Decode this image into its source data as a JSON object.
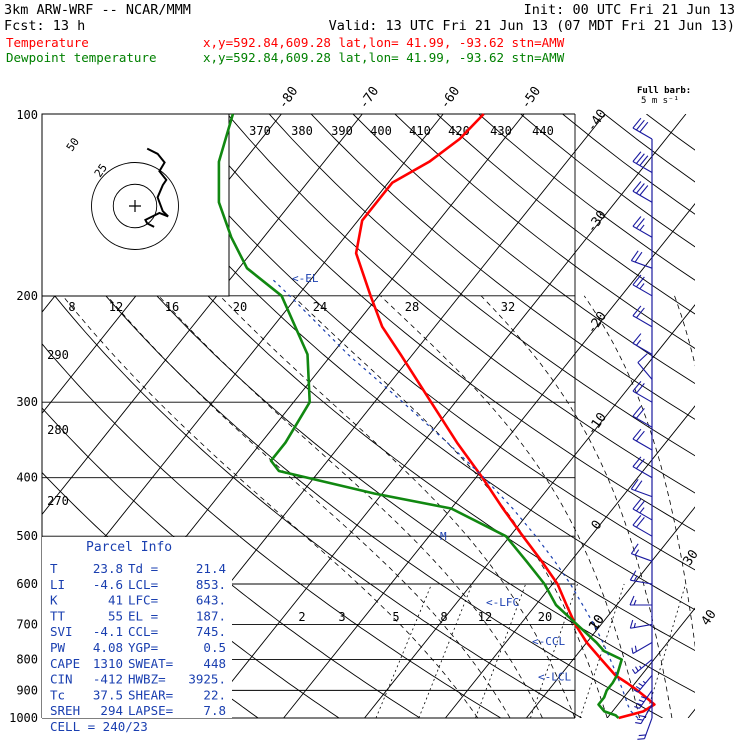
{
  "header": {
    "model": "3km ARW-WRF -- NCAR/MMM",
    "init": "Init: 00 UTC Fri 21 Jun 13",
    "fcst": "Fcst:   13 h",
    "valid": "Valid: 13 UTC Fri 21 Jun 13 (07 MDT Fri 21 Jun 13)",
    "temp_line": {
      "label": "Temperature",
      "coords": "x,y=592.84,609.28  lat,lon= 41.99, -93.62  stn=AMW",
      "color": "#ff0000"
    },
    "dew_line": {
      "label": "Dewpoint temperature",
      "coords": "x,y=592.84,609.28  lat,lon= 41.99, -93.62  stn=AMW",
      "color": "#008000"
    }
  },
  "barb_legend": {
    "title": "Full barb:",
    "value": "5 m s⁻¹"
  },
  "colors": {
    "temperature": "#ff0000",
    "dewpoint": "#118811",
    "parcel": "#1a3fb0",
    "barbs": "#1a1aa0",
    "grid": "#000000"
  },
  "chart_data": {
    "type": "line",
    "subtype": "skew-T log-P sounding",
    "y_axis": {
      "label": "pressure (hPa)",
      "scale": "log",
      "range": [
        1000,
        100
      ],
      "ticks": [
        "100",
        "200",
        "300",
        "400",
        "500",
        "600",
        "700",
        "800",
        "900",
        "1000"
      ]
    },
    "isotherm_labels": [
      "-80",
      "-70",
      "-60",
      "-50",
      "-40",
      "-30",
      "-20",
      "-10",
      "0",
      "10",
      "20",
      "30",
      "40"
    ],
    "dry_adiabat_labels": [
      "370",
      "380",
      "390",
      "400",
      "410",
      "420",
      "430",
      "440",
      "290",
      "280",
      "270"
    ],
    "mixing_ratio_labels": [
      "2",
      "3",
      "5",
      "8",
      "12",
      "20"
    ],
    "series": [
      {
        "name": "Temperature",
        "color": "#ff0000",
        "points": [
          [
            1000,
            21.4
          ],
          [
            975,
            23.8
          ],
          [
            950,
            24.5
          ],
          [
            925,
            22.8
          ],
          [
            900,
            21.0
          ],
          [
            875,
            19.0
          ],
          [
            850,
            16.8
          ],
          [
            800,
            13.5
          ],
          [
            750,
            10.0
          ],
          [
            700,
            6.8
          ],
          [
            650,
            3.8
          ],
          [
            600,
            0.6
          ],
          [
            550,
            -3.6
          ],
          [
            500,
            -8.4
          ],
          [
            450,
            -13.6
          ],
          [
            400,
            -19.2
          ],
          [
            350,
            -25.8
          ],
          [
            300,
            -33.0
          ],
          [
            250,
            -41.5
          ],
          [
            225,
            -46.5
          ],
          [
            200,
            -51.0
          ],
          [
            170,
            -57.0
          ],
          [
            150,
            -59.5
          ],
          [
            130,
            -59.5
          ],
          [
            120,
            -57.0
          ],
          [
            110,
            -55.5
          ],
          [
            100,
            -55.0
          ]
        ]
      },
      {
        "name": "Dewpoint temperature",
        "color": "#118811",
        "points": [
          [
            1000,
            21.4
          ],
          [
            990,
            20.8
          ],
          [
            975,
            19.0
          ],
          [
            950,
            17.6
          ],
          [
            925,
            17.6
          ],
          [
            900,
            17.2
          ],
          [
            875,
            17.2
          ],
          [
            850,
            17.0
          ],
          [
            800,
            16.0
          ],
          [
            775,
            13.0
          ],
          [
            750,
            11.2
          ],
          [
            700,
            7.0
          ],
          [
            650,
            2.5
          ],
          [
            600,
            -1.0
          ],
          [
            550,
            -5.5
          ],
          [
            500,
            -10.5
          ],
          [
            450,
            -20.0
          ],
          [
            425,
            -31.0
          ],
          [
            390,
            -45.0
          ],
          [
            375,
            -47.0
          ],
          [
            350,
            -47.0
          ],
          [
            300,
            -48.0
          ],
          [
            250,
            -53.0
          ],
          [
            200,
            -62.0
          ],
          [
            180,
            -69.0
          ],
          [
            160,
            -74.0
          ],
          [
            140,
            -79.0
          ],
          [
            120,
            -83.0
          ],
          [
            100,
            -86.0
          ]
        ]
      },
      {
        "name": "Parcel",
        "color": "#1a3fb0",
        "points": [
          [
            1000,
            23.8
          ],
          [
            975,
            22.3
          ],
          [
            955,
            21.4
          ],
          [
            900,
            19.2
          ],
          [
            850,
            17.0
          ],
          [
            800,
            14.6
          ],
          [
            750,
            12.0
          ],
          [
            700,
            9.1
          ],
          [
            650,
            5.8
          ],
          [
            600,
            2.2
          ],
          [
            550,
            -2.0
          ],
          [
            500,
            -6.8
          ],
          [
            450,
            -12.4
          ],
          [
            400,
            -19.0
          ],
          [
            350,
            -27.0
          ],
          [
            300,
            -36.5
          ],
          [
            250,
            -48.0
          ],
          [
            200,
            -61.0
          ],
          [
            187,
            -65.0
          ]
        ]
      }
    ],
    "levels_marked": [
      {
        "label": "<-EL",
        "p": 187
      },
      {
        "label": "<-LFC",
        "p": 643
      },
      {
        "label": "<-CCL",
        "p": 745
      },
      {
        "label": "<-LCL",
        "p": 853
      },
      {
        "label": "M",
        "p": 500
      }
    ],
    "hodograph": {
      "units": "kts",
      "speed_axis_labels": [
        "8",
        "12",
        "16",
        "20",
        "24",
        "28",
        "32"
      ],
      "ring_labels": [
        "25",
        "50"
      ],
      "trace_uv": [
        [
          11,
          -12
        ],
        [
          7,
          -10
        ],
        [
          6,
          -8
        ],
        [
          14,
          -4
        ],
        [
          19,
          -6
        ],
        [
          16,
          -3
        ],
        [
          13,
          5
        ],
        [
          16,
          12
        ],
        [
          18,
          15
        ],
        [
          14,
          20
        ],
        [
          17,
          25
        ],
        [
          13,
          30
        ],
        [
          7,
          33
        ]
      ]
    },
    "wind_barbs": [
      {
        "p": 110,
        "speed_kt": 30,
        "dir_deg": 300
      },
      {
        "p": 125,
        "speed_kt": 30,
        "dir_deg": 300
      },
      {
        "p": 140,
        "speed_kt": 30,
        "dir_deg": 300
      },
      {
        "p": 160,
        "speed_kt": 25,
        "dir_deg": 300
      },
      {
        "p": 180,
        "speed_kt": 20,
        "dir_deg": 290
      },
      {
        "p": 200,
        "speed_kt": 25,
        "dir_deg": 300
      },
      {
        "p": 225,
        "speed_kt": 20,
        "dir_deg": 300
      },
      {
        "p": 250,
        "speed_kt": 15,
        "dir_deg": 300
      },
      {
        "p": 275,
        "speed_kt": 10,
        "dir_deg": 320
      },
      {
        "p": 300,
        "speed_kt": 20,
        "dir_deg": 300
      },
      {
        "p": 330,
        "speed_kt": 20,
        "dir_deg": 300
      },
      {
        "p": 360,
        "speed_kt": 20,
        "dir_deg": 300
      },
      {
        "p": 400,
        "speed_kt": 20,
        "dir_deg": 300
      },
      {
        "p": 430,
        "speed_kt": 20,
        "dir_deg": 290
      },
      {
        "p": 470,
        "speed_kt": 25,
        "dir_deg": 300
      },
      {
        "p": 500,
        "speed_kt": 20,
        "dir_deg": 300
      },
      {
        "p": 550,
        "speed_kt": 15,
        "dir_deg": 290
      },
      {
        "p": 600,
        "speed_kt": 15,
        "dir_deg": 280
      },
      {
        "p": 650,
        "speed_kt": 15,
        "dir_deg": 270
      },
      {
        "p": 700,
        "speed_kt": 15,
        "dir_deg": 260
      },
      {
        "p": 750,
        "speed_kt": 20,
        "dir_deg": 240
      },
      {
        "p": 800,
        "speed_kt": 25,
        "dir_deg": 230
      },
      {
        "p": 850,
        "speed_kt": 35,
        "dir_deg": 220
      },
      {
        "p": 900,
        "speed_kt": 40,
        "dir_deg": 215
      },
      {
        "p": 950,
        "speed_kt": 30,
        "dir_deg": 210
      },
      {
        "p": 1000,
        "speed_kt": 20,
        "dir_deg": 200
      }
    ]
  },
  "parcel_info": {
    "title": "Parcel Info",
    "rows": [
      [
        "T  ",
        "23.8",
        "Td ",
        "21.4"
      ],
      [
        "LI ",
        "-4.6",
        "LCL",
        "853."
      ],
      [
        "K  ",
        "41",
        "LFC",
        "643."
      ],
      [
        "TT ",
        "55",
        "EL ",
        "187."
      ],
      [
        "SVI",
        "-4.1",
        "CCL",
        "745."
      ],
      [
        "PW ",
        "4.08",
        "YGP",
        "0.5"
      ],
      [
        "CAPE",
        "1310",
        "SWEAT",
        "448"
      ],
      [
        "CIN",
        "-412",
        "HWBZ",
        "3925."
      ],
      [
        "Tc ",
        "37.5",
        "SHEAR",
        "22."
      ],
      [
        "SREH",
        "294",
        "LAPSE",
        "7.8"
      ]
    ],
    "cell": "CELL = 240/23"
  }
}
